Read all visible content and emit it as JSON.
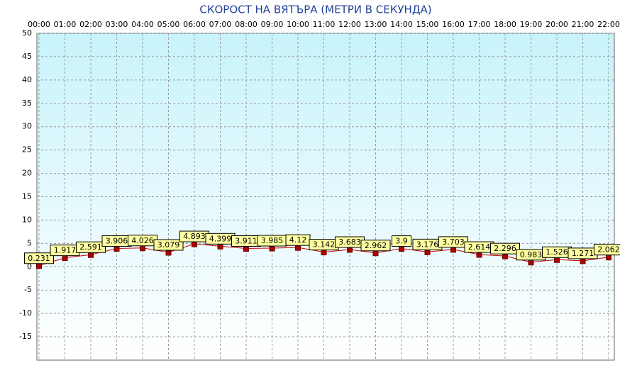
{
  "chart_data": {
    "type": "line",
    "title": "СКОРОСТ НА ВЯТЪРА (МЕТРИ В СЕКУНДА)",
    "categories": [
      "00:00",
      "01:00",
      "02:00",
      "03:00",
      "04:00",
      "05:00",
      "06:00",
      "07:00",
      "08:00",
      "09:00",
      "10:00",
      "11:00",
      "12:00",
      "13:00",
      "14:00",
      "15:00",
      "16:00",
      "17:00",
      "18:00",
      "19:00",
      "20:00",
      "21:00",
      "22:00"
    ],
    "values": [
      0.231,
      1.917,
      2.591,
      3.906,
      4.026,
      3.079,
      4.893,
      4.399,
      3.911,
      3.985,
      4.12,
      3.142,
      3.683,
      2.962,
      3.9,
      3.176,
      3.703,
      2.614,
      2.296,
      0.983,
      1.526,
      1.271,
      2.062
    ],
    "color": "#cc0000",
    "ylim": [
      -20,
      50
    ],
    "yticks": [
      -15,
      -10,
      -5,
      0,
      5,
      10,
      15,
      20,
      25,
      30,
      35,
      40,
      45,
      50
    ],
    "grid": true
  }
}
